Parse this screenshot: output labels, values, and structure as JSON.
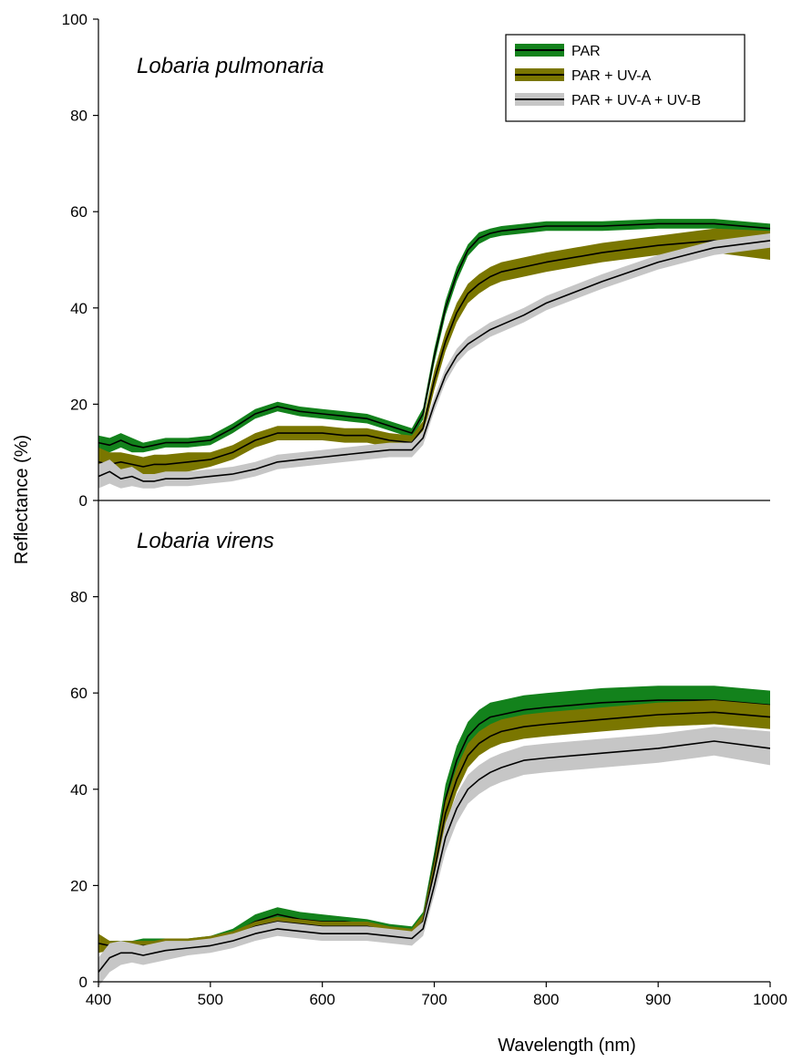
{
  "chart_data": {
    "type": "line",
    "xlabel": "Wavelength (nm)",
    "ylabel": "Reflectance (%)",
    "xlim": [
      400,
      1000
    ],
    "x_ticks": [
      400,
      500,
      600,
      700,
      800,
      900,
      1000
    ],
    "grid": false,
    "legend_position": "top-right",
    "legend": [
      {
        "label": "PAR",
        "band_color": "#13821c",
        "line_color": "#000000"
      },
      {
        "label": "PAR + UV-A",
        "band_color": "#7a7600",
        "line_color": "#000000"
      },
      {
        "label": "PAR + UV-A + UV-B",
        "band_color": "#c6c6c6",
        "line_color": "#000000"
      }
    ],
    "panels": [
      {
        "title": "Lobaria pulmonaria",
        "ylim": [
          0,
          100
        ],
        "y_ticks": [
          0,
          20,
          40,
          60,
          80,
          100
        ],
        "series": [
          {
            "name": "PAR",
            "x": [
              400,
              410,
              420,
              430,
              440,
              450,
              460,
              480,
              500,
              520,
              540,
              560,
              580,
              600,
              620,
              640,
              660,
              680,
              690,
              700,
              710,
              720,
              730,
              740,
              750,
              760,
              780,
              800,
              850,
              900,
              950,
              1000
            ],
            "mean": [
              12,
              11.5,
              12.5,
              11.5,
              11,
              11.5,
              12,
              12,
              12.5,
              15,
              18,
              19.5,
              18.5,
              18,
              17.5,
              17,
              15.5,
              14,
              18,
              30,
              40,
              47,
              52,
              54.5,
              55.5,
              56,
              56.5,
              57,
              57,
              57.5,
              57.5,
              56.5
            ],
            "err": [
              1.5,
              1.5,
              1.5,
              1.5,
              1,
              1,
              1,
              1,
              1,
              1,
              1,
              1,
              1,
              1,
              1,
              1,
              1,
              1,
              1.2,
              1.5,
              1.5,
              1.5,
              1.2,
              1.2,
              1,
              1,
              1,
              1,
              1,
              1,
              1,
              1
            ]
          },
          {
            "name": "PAR + UV-A",
            "x": [
              400,
              410,
              420,
              430,
              440,
              450,
              460,
              480,
              500,
              520,
              540,
              560,
              580,
              600,
              620,
              640,
              660,
              680,
              690,
              700,
              710,
              720,
              730,
              740,
              750,
              760,
              780,
              800,
              850,
              900,
              950,
              1000
            ],
            "mean": [
              8,
              7.5,
              8,
              7.5,
              7,
              7.5,
              7.5,
              8,
              8.5,
              10,
              12.5,
              14,
              14,
              14,
              13.5,
              13.5,
              12.5,
              12,
              15,
              25,
              33,
              39,
              43,
              45,
              46.5,
              47.5,
              48.5,
              49.5,
              51.5,
              53,
              54,
              53
            ],
            "err": [
              3,
              2.5,
              2,
              2,
              2,
              2,
              2,
              2,
              1.5,
              1.5,
              1.5,
              1.5,
              1.5,
              1.5,
              1.5,
              1.5,
              1.5,
              1.5,
              1.5,
              2,
              2,
              2,
              2,
              2,
              2,
              2,
              2,
              2,
              2,
              2,
              2.5,
              3
            ]
          },
          {
            "name": "PAR + UV-A + UV-B",
            "x": [
              400,
              410,
              420,
              430,
              440,
              450,
              460,
              480,
              500,
              520,
              540,
              560,
              580,
              600,
              620,
              640,
              660,
              680,
              690,
              700,
              710,
              720,
              730,
              740,
              750,
              760,
              780,
              800,
              850,
              900,
              950,
              1000
            ],
            "mean": [
              5,
              6,
              4.5,
              5,
              4,
              4,
              4.5,
              4.5,
              5,
              5.5,
              6.5,
              8,
              8.5,
              9,
              9.5,
              10,
              10.5,
              10.5,
              13,
              20,
              26,
              30,
              32.5,
              34,
              35.5,
              36.5,
              38.5,
              41,
              45.5,
              49.5,
              52.5,
              54
            ],
            "err": [
              2.5,
              2.5,
              2,
              2,
              1.5,
              1.5,
              1.5,
              1.5,
              1.5,
              1.5,
              1.5,
              1.5,
              1.5,
              1.5,
              1.5,
              1.5,
              1.5,
              1.5,
              1.5,
              1.5,
              1.5,
              1.5,
              1.5,
              1.5,
              1.5,
              1.5,
              1.5,
              1.5,
              1.5,
              1.5,
              1.5,
              1.5
            ]
          }
        ]
      },
      {
        "title": "Lobaria virens",
        "ylim": [
          0,
          100
        ],
        "y_ticks": [
          0,
          20,
          40,
          60,
          80
        ],
        "series": [
          {
            "name": "PAR",
            "x": [
              400,
              410,
              420,
              430,
              440,
              450,
              460,
              480,
              500,
              520,
              540,
              560,
              580,
              600,
              620,
              640,
              660,
              680,
              690,
              700,
              710,
              720,
              730,
              740,
              750,
              760,
              780,
              800,
              850,
              900,
              950,
              1000
            ],
            "mean": [
              8,
              7.5,
              7.5,
              7.5,
              8,
              8,
              8,
              8,
              8.5,
              10,
              12.5,
              14,
              13,
              12.5,
              12.5,
              12,
              11,
              10.5,
              13,
              25,
              38,
              46,
              51,
              53.5,
              55,
              55.5,
              56.5,
              57,
              58,
              58.5,
              58.5,
              57.5
            ],
            "err": [
              1.5,
              1,
              1,
              1,
              1,
              1,
              1,
              1,
              1,
              1,
              1.5,
              1.5,
              1.5,
              1.5,
              1,
              1,
              1,
              1,
              1.5,
              2,
              3,
              3,
              3,
              3,
              3,
              3,
              3,
              3,
              3,
              3,
              3,
              3
            ]
          },
          {
            "name": "PAR + UV-A",
            "x": [
              400,
              410,
              420,
              430,
              440,
              450,
              460,
              480,
              500,
              520,
              540,
              560,
              580,
              600,
              620,
              640,
              660,
              680,
              690,
              700,
              710,
              720,
              730,
              740,
              750,
              760,
              780,
              800,
              850,
              900,
              950,
              1000
            ],
            "mean": [
              8,
              7.5,
              7.5,
              7.5,
              7.5,
              7.5,
              8,
              8,
              8.5,
              9.5,
              11.5,
              12.5,
              12,
              11.5,
              11.5,
              11.5,
              10.5,
              10,
              12.5,
              23,
              35,
              42,
              47,
              49.5,
              51,
              52,
              53,
              53.5,
              54.5,
              55.5,
              56,
              55
            ],
            "err": [
              2,
              1,
              1,
              1,
              1,
              1,
              1,
              1,
              1,
              1,
              1,
              1,
              1,
              1,
              1,
              1,
              1,
              1,
              1.5,
              2,
              2.5,
              2.5,
              2.5,
              2.5,
              2.5,
              2.5,
              2.5,
              2.5,
              2.5,
              2.5,
              2.5,
              2.5
            ]
          },
          {
            "name": "PAR + UV-A + UV-B",
            "x": [
              400,
              410,
              420,
              430,
              440,
              450,
              460,
              480,
              500,
              520,
              540,
              560,
              580,
              600,
              620,
              640,
              660,
              680,
              690,
              700,
              710,
              720,
              730,
              740,
              750,
              760,
              780,
              800,
              850,
              900,
              950,
              1000
            ],
            "mean": [
              2,
              5,
              6,
              6,
              5.5,
              6,
              6.5,
              7,
              7.5,
              8.5,
              10,
              11,
              10.5,
              10,
              10,
              10,
              9.5,
              9,
              11,
              20,
              30,
              36,
              40,
              42,
              43.5,
              44.5,
              46,
              46.5,
              47.5,
              48.5,
              50,
              48.5
            ],
            "err": [
              3,
              3,
              2.5,
              2,
              2,
              2,
              2,
              1.5,
              1.5,
              1.5,
              1.5,
              1.5,
              1.5,
              1.5,
              1.5,
              1.5,
              1.5,
              1.5,
              1.5,
              2,
              3,
              3,
              3,
              3,
              3,
              3,
              3,
              3,
              3,
              3,
              3,
              3.5
            ]
          }
        ]
      }
    ]
  }
}
